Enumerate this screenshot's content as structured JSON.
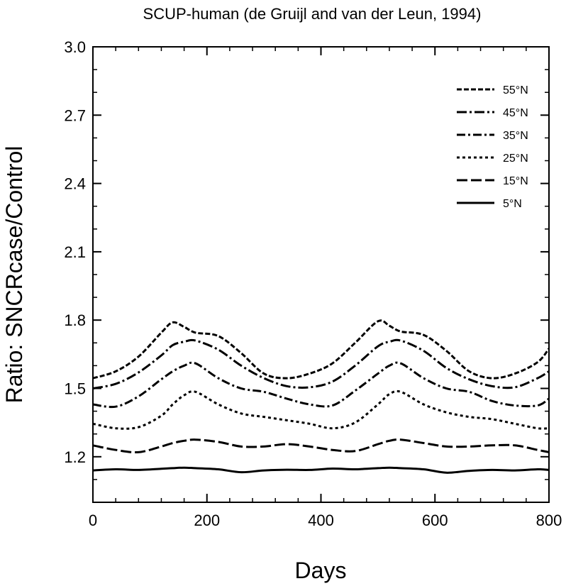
{
  "chart_data": {
    "type": "line",
    "title": "SCUP-human (de Gruijl and van der Leun, 1994)",
    "xlabel": "Days",
    "ylabel": "Ratio: SNCRcase/Control",
    "xlim": [
      0,
      800
    ],
    "ylim": [
      1.0,
      3.0
    ],
    "x_ticks": [
      0,
      200,
      400,
      600,
      800
    ],
    "x_tick_labels": [
      "0",
      "200",
      "400",
      "600",
      "800"
    ],
    "y_ticks": [
      1.2,
      1.5,
      1.8,
      2.1,
      2.4,
      2.7,
      3.0
    ],
    "y_tick_labels": [
      "1.2",
      "1.5",
      "1.8",
      "2.1",
      "2.4",
      "2.7",
      "3.0"
    ],
    "grid": false,
    "legend_position": "top-right",
    "x": [
      0,
      40,
      80,
      120,
      140,
      160,
      180,
      220,
      260,
      300,
      340,
      380,
      420,
      460,
      500,
      520,
      540,
      580,
      620,
      660,
      700,
      740,
      780,
      800
    ],
    "series": [
      {
        "name": "55°N",
        "dash": "7,3",
        "values": [
          1.545,
          1.575,
          1.64,
          1.745,
          1.79,
          1.77,
          1.745,
          1.73,
          1.655,
          1.565,
          1.545,
          1.565,
          1.61,
          1.7,
          1.795,
          1.775,
          1.75,
          1.735,
          1.665,
          1.575,
          1.545,
          1.565,
          1.615,
          1.675
        ]
      },
      {
        "name": "45°N",
        "dash": "14,4,3,4",
        "values": [
          1.5,
          1.52,
          1.57,
          1.645,
          1.69,
          1.705,
          1.71,
          1.67,
          1.6,
          1.545,
          1.51,
          1.505,
          1.53,
          1.6,
          1.685,
          1.705,
          1.71,
          1.665,
          1.59,
          1.54,
          1.51,
          1.505,
          1.545,
          1.575
        ]
      },
      {
        "name": "35°N",
        "dash": "12,4,3,4",
        "values": [
          1.43,
          1.42,
          1.465,
          1.54,
          1.575,
          1.6,
          1.61,
          1.545,
          1.5,
          1.485,
          1.455,
          1.43,
          1.425,
          1.49,
          1.565,
          1.6,
          1.61,
          1.545,
          1.5,
          1.485,
          1.445,
          1.425,
          1.425,
          1.455
        ]
      },
      {
        "name": "25°N",
        "dash": "4,4",
        "values": [
          1.345,
          1.325,
          1.33,
          1.38,
          1.43,
          1.47,
          1.485,
          1.43,
          1.39,
          1.375,
          1.36,
          1.345,
          1.325,
          1.35,
          1.43,
          1.475,
          1.485,
          1.43,
          1.395,
          1.375,
          1.365,
          1.345,
          1.325,
          1.325
        ]
      },
      {
        "name": "15°N",
        "dash": "15,5",
        "values": [
          1.25,
          1.23,
          1.22,
          1.245,
          1.26,
          1.27,
          1.275,
          1.265,
          1.245,
          1.245,
          1.255,
          1.245,
          1.23,
          1.225,
          1.255,
          1.27,
          1.275,
          1.26,
          1.245,
          1.245,
          1.25,
          1.25,
          1.23,
          1.22
        ]
      },
      {
        "name": "5°N",
        "dash": "",
        "values": [
          1.14,
          1.145,
          1.142,
          1.147,
          1.15,
          1.152,
          1.15,
          1.145,
          1.132,
          1.14,
          1.143,
          1.142,
          1.148,
          1.145,
          1.15,
          1.152,
          1.15,
          1.145,
          1.13,
          1.138,
          1.142,
          1.14,
          1.145,
          1.142
        ]
      }
    ]
  }
}
